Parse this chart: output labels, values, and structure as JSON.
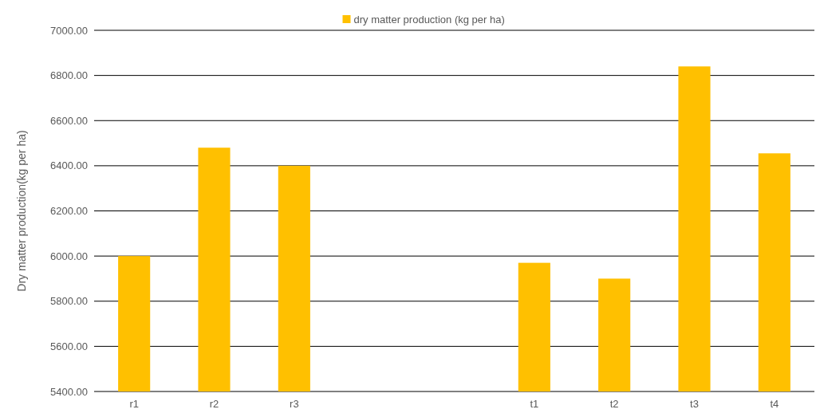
{
  "chart_data": {
    "type": "bar",
    "ylabel": "Dry matter production(kg per ha)",
    "categories": [
      "r1",
      "r2",
      "r3",
      null,
      null,
      "t1",
      "t2",
      "t3",
      "t4"
    ],
    "series": [
      {
        "name": "dry matter production (kg per ha)",
        "color": "#ffc000",
        "values": [
          6000,
          6480,
          6400,
          null,
          null,
          5970,
          5900,
          6840,
          6455
        ]
      }
    ],
    "ylim": [
      5400,
      7000
    ],
    "yticks": [
      {
        "value": 5400,
        "label": "5400.00"
      },
      {
        "value": 5600,
        "label": "5600.00"
      },
      {
        "value": 5800,
        "label": "5800.00"
      },
      {
        "value": 6000,
        "label": "6000.00"
      },
      {
        "value": 6200,
        "label": "6200.00"
      },
      {
        "value": 6400,
        "label": "6400.00"
      },
      {
        "value": 6600,
        "label": "6600.00"
      },
      {
        "value": 6800,
        "label": "6800.00"
      },
      {
        "value": 7000,
        "label": "7000.00"
      }
    ],
    "grid": "y",
    "legend": "top"
  }
}
